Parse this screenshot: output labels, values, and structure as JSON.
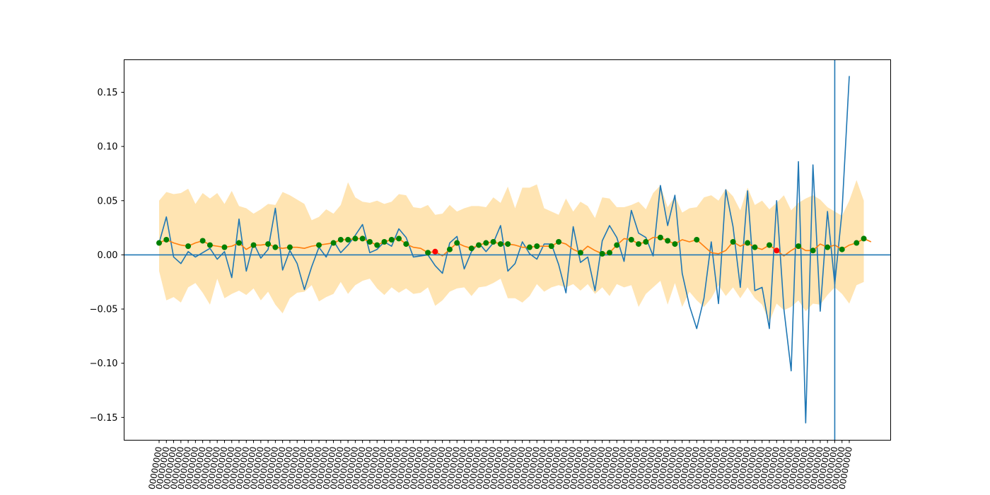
{
  "chart_data": {
    "type": "line",
    "ylim": [
      -0.171,
      0.18
    ],
    "yticks": [
      {
        "value": 0.15,
        "label": "0.15"
      },
      {
        "value": 0.1,
        "label": "0.10"
      },
      {
        "value": 0.05,
        "label": "0.05"
      },
      {
        "value": 0.0,
        "label": "0.00"
      },
      {
        "value": -0.05,
        "label": "−0.05"
      },
      {
        "value": -0.1,
        "label": "−0.10"
      },
      {
        "value": -0.15,
        "label": "−0.15"
      }
    ],
    "xtick_label": "00000000",
    "hline": 0.0,
    "vline_index": 93,
    "series": [
      {
        "values": [
          0.011,
          0.035,
          -0.002,
          -0.008,
          0.003,
          -0.002,
          0.002,
          0.006,
          -0.004,
          0.003,
          -0.021,
          0.033,
          -0.015,
          0.011,
          -0.003,
          0.005,
          0.043,
          -0.014,
          0.004,
          -0.008,
          -0.032,
          -0.011,
          0.007,
          -0.002,
          0.013,
          0.002,
          0.009,
          0.018,
          0.028,
          0.002,
          0.005,
          0.012,
          0.008,
          0.024,
          0.016,
          -0.002,
          -0.001,
          0.0,
          -0.01,
          -0.017,
          0.011,
          0.017,
          -0.013,
          0.003,
          0.011,
          0.003,
          0.011,
          0.027,
          -0.015,
          -0.008,
          0.012,
          0.001,
          -0.004,
          0.01,
          0.01,
          -0.009,
          -0.035,
          0.026,
          -0.007,
          -0.002,
          -0.033,
          0.013,
          0.027,
          0.016,
          -0.006,
          0.041,
          0.02,
          0.016,
          -0.001,
          0.064,
          0.027,
          0.055,
          -0.017,
          -0.047,
          -0.068,
          -0.04,
          0.012,
          -0.045,
          0.06,
          0.026,
          -0.03,
          0.059,
          -0.033,
          -0.03,
          -0.068,
          0.05,
          -0.05,
          -0.107,
          0.086,
          -0.155,
          0.083,
          -0.052,
          0.04,
          -0.027,
          0.04,
          0.165
        ]
      },
      {
        "values": [
          0.011,
          0.014,
          0.011,
          0.009,
          0.008,
          0.011,
          0.013,
          0.009,
          0.008,
          0.007,
          0.008,
          0.011,
          0.005,
          0.009,
          0.009,
          0.01,
          0.007,
          0.006,
          0.007,
          0.007,
          0.006,
          0.008,
          0.009,
          0.01,
          0.011,
          0.014,
          0.014,
          0.015,
          0.015,
          0.012,
          0.009,
          0.012,
          0.014,
          0.015,
          0.01,
          0.007,
          0.006,
          0.002,
          0.003,
          -0.001,
          0.005,
          0.011,
          0.008,
          0.006,
          0.009,
          0.011,
          0.012,
          0.01,
          0.01,
          0.009,
          0.007,
          0.007,
          0.008,
          0.008,
          0.008,
          0.012,
          0.01,
          0.005,
          0.002,
          0.008,
          0.004,
          0.001,
          0.002,
          0.009,
          0.015,
          0.014,
          0.01,
          0.012,
          0.016,
          0.016,
          0.013,
          0.01,
          0.014,
          0.012,
          0.014,
          0.008,
          0.002,
          0.001,
          0.004,
          0.012,
          0.008,
          0.011,
          0.007,
          0.005,
          0.009,
          0.004,
          -0.001,
          0.004,
          0.008,
          0.004,
          0.004,
          0.01,
          0.007,
          0.009,
          0.005,
          0.009,
          0.011,
          0.015,
          0.012
        ]
      }
    ],
    "band_lower": [
      -0.015,
      -0.042,
      -0.039,
      -0.044,
      -0.03,
      -0.026,
      -0.035,
      -0.046,
      -0.022,
      -0.04,
      -0.036,
      -0.033,
      -0.037,
      -0.031,
      -0.042,
      -0.034,
      -0.046,
      -0.054,
      -0.04,
      -0.035,
      -0.034,
      -0.028,
      -0.043,
      -0.039,
      -0.036,
      -0.025,
      -0.036,
      -0.028,
      -0.024,
      -0.022,
      -0.031,
      -0.037,
      -0.03,
      -0.035,
      -0.031,
      -0.036,
      -0.035,
      -0.03,
      -0.047,
      -0.042,
      -0.034,
      -0.031,
      -0.03,
      -0.038,
      -0.03,
      -0.029,
      -0.026,
      -0.022,
      -0.04,
      -0.04,
      -0.044,
      -0.038,
      -0.027,
      -0.034,
      -0.03,
      -0.028,
      -0.03,
      -0.027,
      -0.033,
      -0.027,
      -0.036,
      -0.03,
      -0.038,
      -0.027,
      -0.03,
      -0.028,
      -0.048,
      -0.036,
      -0.03,
      -0.024,
      -0.046,
      -0.026,
      -0.048,
      -0.034,
      -0.042,
      -0.048,
      -0.04,
      -0.028,
      -0.038,
      -0.03,
      -0.04,
      -0.03,
      -0.04,
      -0.046,
      -0.062,
      -0.045,
      -0.051,
      -0.048,
      -0.042,
      -0.052,
      -0.045,
      -0.046,
      -0.037,
      -0.03,
      -0.036,
      -0.045,
      -0.028,
      -0.025
    ],
    "band_upper": [
      0.05,
      0.058,
      0.056,
      0.057,
      0.061,
      0.047,
      0.057,
      0.052,
      0.057,
      0.047,
      0.059,
      0.045,
      0.043,
      0.038,
      0.042,
      0.047,
      0.046,
      0.058,
      0.055,
      0.051,
      0.047,
      0.032,
      0.035,
      0.042,
      0.038,
      0.046,
      0.067,
      0.053,
      0.049,
      0.048,
      0.05,
      0.047,
      0.049,
      0.056,
      0.055,
      0.044,
      0.043,
      0.046,
      0.037,
      0.038,
      0.046,
      0.04,
      0.043,
      0.045,
      0.045,
      0.044,
      0.053,
      0.048,
      0.063,
      0.043,
      0.062,
      0.062,
      0.065,
      0.043,
      0.04,
      0.037,
      0.052,
      0.04,
      0.049,
      0.045,
      0.034,
      0.053,
      0.052,
      0.044,
      0.044,
      0.046,
      0.049,
      0.042,
      0.057,
      0.064,
      0.044,
      0.054,
      0.039,
      0.043,
      0.044,
      0.053,
      0.055,
      0.05,
      0.061,
      0.054,
      0.041,
      0.062,
      0.046,
      0.05,
      0.042,
      0.048,
      0.055,
      0.041,
      0.048,
      0.052,
      0.055,
      0.051,
      0.044,
      0.04,
      0.036,
      0.05,
      0.069,
      0.05
    ],
    "green_markers": [
      0,
      1,
      4,
      6,
      7,
      9,
      11,
      13,
      15,
      16,
      18,
      22,
      24,
      25,
      26,
      27,
      28,
      29,
      30,
      31,
      32,
      33,
      34,
      37,
      40,
      41,
      43,
      44,
      45,
      46,
      47,
      48,
      51,
      52,
      54,
      55,
      58,
      61,
      62,
      63,
      65,
      66,
      67,
      69,
      70,
      71,
      74,
      79,
      81,
      82,
      84,
      88,
      90,
      92,
      94,
      96,
      97
    ],
    "red_markers": [
      38,
      85
    ]
  },
  "colors": {
    "series_line": "#1f77b4",
    "mean_line": "#ff7f0e",
    "band_fill": "#ffa500",
    "reference_line": "#1f77b4",
    "green_marker": "#008000",
    "red_marker": "#ff0000"
  }
}
